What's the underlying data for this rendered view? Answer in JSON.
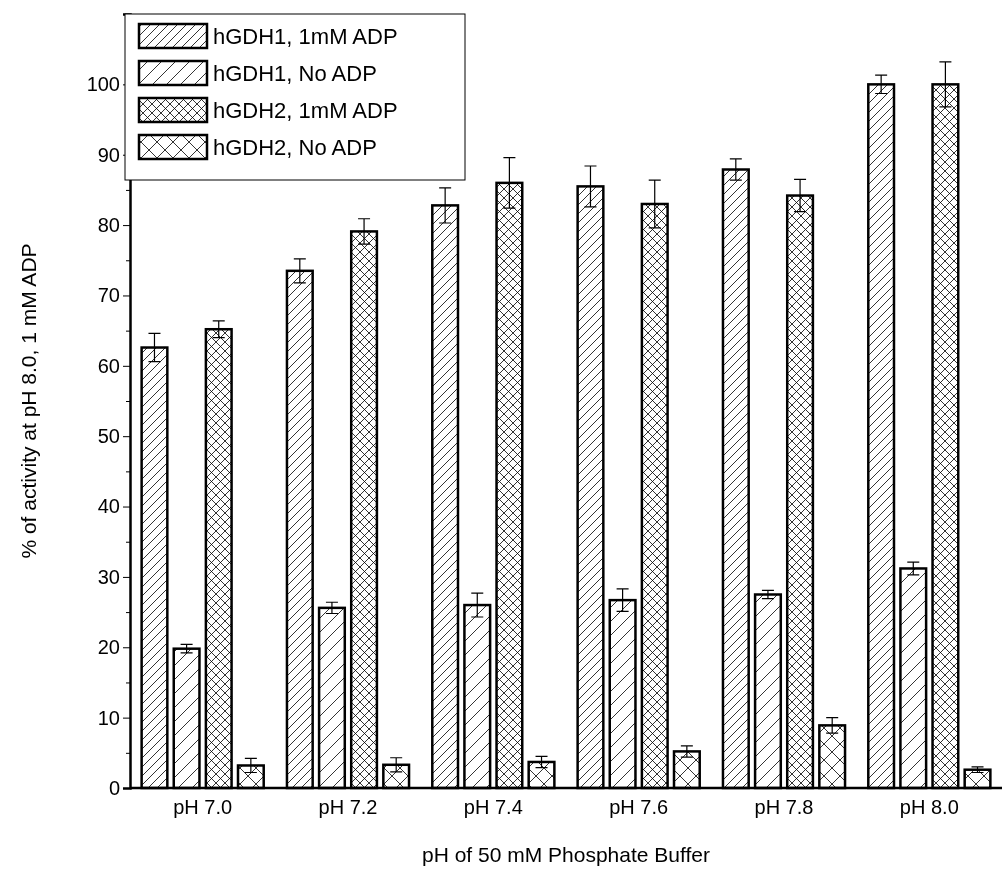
{
  "chart_data": {
    "type": "bar",
    "xlabel": "pH of 50 mM Phosphate Buffer",
    "ylabel": "% of activity at pH 8.0,  1 mM ADP",
    "categories": [
      "pH 7.0",
      "pH 7.2",
      "pH 7.4",
      "pH 7.6",
      "pH 7.8",
      "pH 8.0"
    ],
    "series": [
      {
        "name": "hGDH1, 1mM ADP",
        "color": "#000000",
        "values": [
          62.6,
          73.5,
          82.8,
          85.5,
          87.9,
          100
        ],
        "errors": [
          2,
          1.7,
          2.5,
          2.9,
          1.5,
          1.3
        ]
      },
      {
        "name": "hGDH1, No ADP",
        "color": "#000000",
        "values": [
          19.8,
          25.6,
          26.0,
          26.7,
          27.5,
          31.2
        ],
        "errors": [
          0.6,
          0.8,
          1.7,
          1.6,
          0.6,
          0.9
        ]
      },
      {
        "name": "hGDH2, 1mM ADP",
        "color": "#000000",
        "values": [
          65.2,
          79.1,
          86.0,
          83.0,
          84.2,
          100
        ],
        "errors": [
          1.2,
          1.8,
          3.6,
          3.4,
          2.3,
          3.2
        ]
      },
      {
        "name": "hGDH2, No ADP",
        "color": "#000000",
        "values": [
          3.2,
          3.3,
          3.7,
          5.2,
          8.9,
          2.6
        ],
        "errors": [
          1,
          1,
          0.8,
          0.8,
          1.1,
          0.4
        ]
      }
    ],
    "ylim": [
      0,
      110
    ],
    "yticks": [
      0,
      {
        "value": 5,
        "label": null
      },
      10,
      {
        "value": 15,
        "label": null
      },
      20,
      {
        "value": 25,
        "label": null
      },
      30,
      {
        "value": 35,
        "label": null
      },
      40,
      {
        "value": 45,
        "label": null
      },
      50,
      {
        "value": 55,
        "label": null
      },
      60,
      {
        "value": 65,
        "label": null
      },
      70,
      {
        "value": 75,
        "label": null
      },
      80,
      {
        "value": 85,
        "label": null
      },
      90,
      {
        "value": 95,
        "label": null
      },
      100,
      {
        "value": 105,
        "label": null
      }
    ],
    "grid": false,
    "legend": "top left"
  }
}
